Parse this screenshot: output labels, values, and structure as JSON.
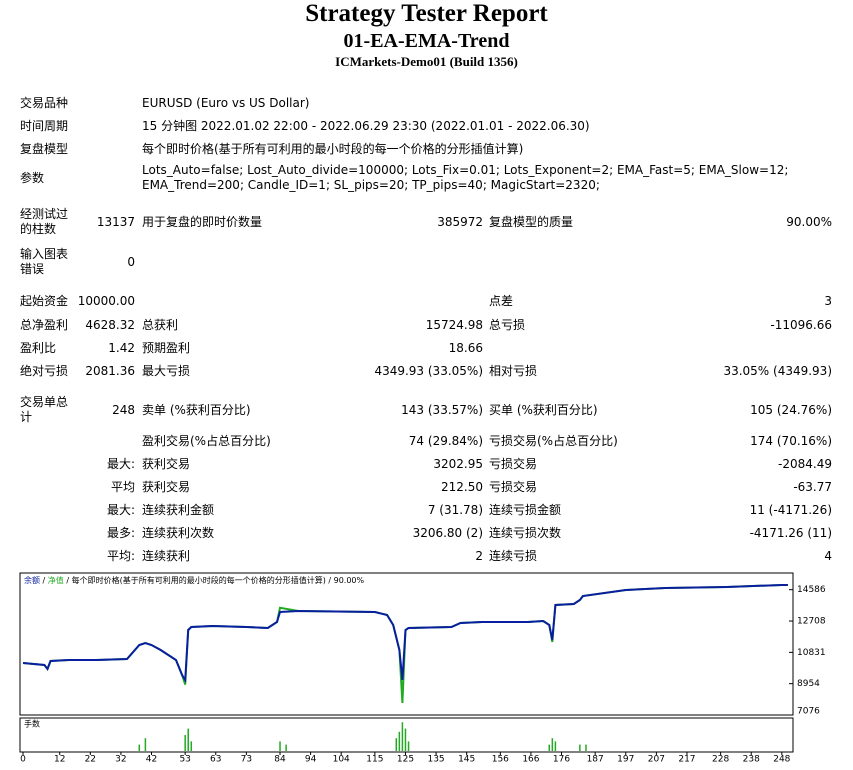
{
  "header": {
    "title": "Strategy Tester Report",
    "subtitle": "01-EA-EMA-Trend",
    "build": "ICMarkets-Demo01 (Build 1356)"
  },
  "settings": {
    "rows": [
      [
        "交易品种",
        "EURUSD (Euro vs US Dollar)"
      ],
      [
        "时间周期",
        "15 分钟图 2022.01.02 22:00 - 2022.06.29 23:30 (2022.01.01 - 2022.06.30)"
      ],
      [
        "复盘模型",
        "每个即时价格(基于所有可利用的最小时段的每一个价格的分形插值计算)"
      ],
      [
        "参数",
        "Lots_Auto=false; Lost_Auto_divide=100000; Lots_Fix=0.01; Lots_Exponent=2; EMA_Fast=5; EMA_Slow=12; EMA_Trend=200; Candle_ID=1; SL_pips=20; TP_pips=40; MagicStart=2320;"
      ]
    ]
  },
  "stats": {
    "rows": [
      [
        "经测试过的柱数",
        "13137",
        "用于复盘的即时价数量",
        "385972",
        "复盘模型的质量",
        "90.00%"
      ],
      [
        "输入图表错误",
        "0",
        null,
        null,
        null,
        null
      ],
      [
        "起始资金",
        "10000.00",
        null,
        null,
        "点差",
        "3"
      ],
      [
        "总净盈利",
        "4628.32",
        "总获利",
        "15724.98",
        "总亏损",
        "-11096.66"
      ],
      [
        "盈利比",
        "1.42",
        "预期盈利",
        "18.66",
        null,
        null
      ],
      [
        "绝对亏损",
        "2081.36",
        "最大亏损",
        "4349.93 (33.05%)",
        "相对亏损",
        "33.05% (4349.93)"
      ],
      [
        "交易单总计",
        "248",
        "卖单 (%获利百分比)",
        "143 (33.57%)",
        "买单 (%获利百分比)",
        "105 (24.76%)"
      ],
      [
        null,
        null,
        "盈利交易(%占总百分比)",
        "74 (29.84%)",
        "亏损交易(%占总百分比)",
        "174 (70.16%)"
      ],
      [
        null,
        "最大:",
        "获利交易",
        "3202.95",
        "亏损交易",
        "-2084.49"
      ],
      [
        null,
        "平均",
        "获利交易",
        "212.50",
        "亏损交易",
        "-63.77"
      ],
      [
        null,
        "最大:",
        "连续获利金额",
        "7 (31.78)",
        "连续亏损金额",
        "11 (-4171.26)"
      ],
      [
        null,
        "最多:",
        "连续获利次数",
        "3206.80 (2)",
        "连续亏损次数",
        "-4171.26 (11)"
      ],
      [
        null,
        "平均:",
        "连续获利",
        "2",
        "连续亏损",
        "4"
      ]
    ]
  },
  "chart_data": [
    {
      "type": "line",
      "legend_separator": "/",
      "legend_note": "每个即时价格(基于所有可利用的最小时段的每一个价格的分形插值计算) / 90.00%",
      "x": [
        0,
        7,
        8,
        9,
        15,
        24,
        34,
        38,
        40,
        42,
        45,
        50,
        52,
        53,
        54,
        55,
        62,
        73,
        80,
        83,
        84,
        90,
        115,
        119,
        121,
        123,
        124,
        125,
        126,
        140,
        143,
        150,
        165,
        170,
        172,
        173,
        174,
        180,
        182,
        183,
        197,
        210,
        230,
        248,
        250
      ],
      "series": [
        {
          "name": "余额",
          "color": "#0a1ea0",
          "values": [
            10192,
            10073,
            9833,
            10312,
            10372,
            10372,
            10432,
            11271,
            11391,
            11271,
            10971,
            10372,
            9473,
            9173,
            12170,
            12350,
            12410,
            12350,
            12290,
            12649,
            13249,
            13309,
            13249,
            13069,
            12470,
            10971,
            9173,
            12170,
            12290,
            12350,
            12590,
            12649,
            12649,
            12709,
            12470,
            11570,
            13668,
            13728,
            13968,
            14207,
            14567,
            14687,
            14747,
            14867,
            14867
          ]
        },
        {
          "name": "净值",
          "color": "#22aa22",
          "values": [
            10192,
            10073,
            9833,
            10312,
            10372,
            10372,
            10432,
            11271,
            11391,
            11271,
            10971,
            10372,
            9473,
            8900,
            12170,
            12350,
            12410,
            12350,
            12290,
            12649,
            13500,
            13309,
            13249,
            13069,
            12470,
            10971,
            7800,
            12170,
            12290,
            12350,
            12590,
            12649,
            12649,
            12709,
            12470,
            11450,
            13668,
            13728,
            13968,
            14207,
            14567,
            14687,
            14747,
            14867,
            14867
          ]
        }
      ],
      "xlim": [
        0,
        251
      ],
      "ylim": [
        7076,
        15466
      ],
      "xticks": [
        0,
        12,
        22,
        32,
        42,
        53,
        63,
        73,
        84,
        94,
        104,
        115,
        125,
        135,
        145,
        156,
        166,
        176,
        187,
        197,
        207,
        217,
        228,
        238,
        248
      ],
      "yticks": [
        14586,
        12708,
        10831,
        8954,
        7076
      ]
    },
    {
      "type": "bar",
      "title": "手数",
      "color": "#22aa22",
      "x": [
        38,
        40,
        53,
        54,
        55,
        84,
        86,
        122,
        123,
        124,
        125,
        126,
        172,
        173,
        174,
        182,
        184
      ],
      "values": [
        0.02,
        0.04,
        0.05,
        0.07,
        0.03,
        0.03,
        0.02,
        0.04,
        0.06,
        0.09,
        0.07,
        0.03,
        0.02,
        0.04,
        0.03,
        0.02,
        0.02
      ],
      "xlim": [
        0,
        251
      ],
      "ylim": [
        0,
        0.1
      ]
    }
  ]
}
